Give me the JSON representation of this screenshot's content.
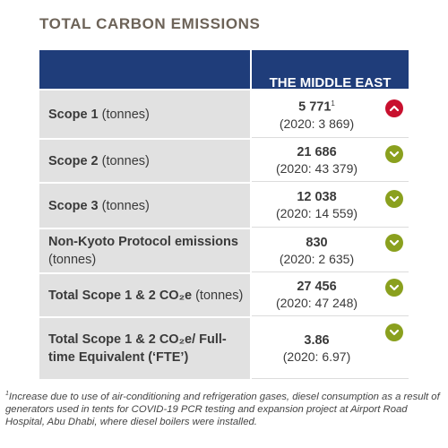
{
  "title": "TOTAL CARBON EMISSIONS",
  "column_header": "THE MIDDLE EAST",
  "rows": [
    {
      "label_bold": "Scope 1",
      "label_rest": " (tonnes)",
      "value": "5 771",
      "footnote_mark": "1",
      "prior": "(2020: 3 869)",
      "trend": "up"
    },
    {
      "label_bold": "Scope 2",
      "label_rest": " (tonnes)",
      "value": "21 686",
      "footnote_mark": "",
      "prior": "(2020: 43 379)",
      "trend": "down"
    },
    {
      "label_bold": "Scope 3",
      "label_rest": " (tonnes)",
      "value": "12 038",
      "footnote_mark": "",
      "prior": "(2020: 14 559)",
      "trend": "down"
    },
    {
      "label_bold": "Non-Kyoto Protocol emissions",
      "label_rest": " (tonnes)",
      "value": "830",
      "footnote_mark": "",
      "prior": "(2020: 2 635)",
      "trend": "down"
    },
    {
      "label_bold": "Total Scope 1 & 2 CO₂e",
      "label_rest": " (tonnes)",
      "value": "27 456",
      "footnote_mark": "",
      "prior": "(2020: 47 248)",
      "trend": "down"
    },
    {
      "label_bold": "Total Scope 1 & 2 CO₂e/ Full-time Equivalent (‘FTE’)",
      "label_rest": "",
      "value": "3.86",
      "footnote_mark": "",
      "prior": "(2020: 6.97)",
      "trend": "down"
    }
  ],
  "footnote": {
    "mark": "1",
    "text": "Increase due to use of air-conditioning and refrigeration gases, diesel consumption as a result of generators used in tents for COVID-19 PCR testing and expansion project at Airport Road Hospital, Abu Dhabi, where diesel boilers were installed."
  },
  "colors": {
    "header": "#1f3d7a",
    "up": "#c8102e",
    "down": "#8aa01e",
    "label_bg": "#e1e1e1",
    "title": "#6d6358"
  },
  "icons": {
    "up": "chevron-up-icon",
    "down": "chevron-down-icon"
  }
}
